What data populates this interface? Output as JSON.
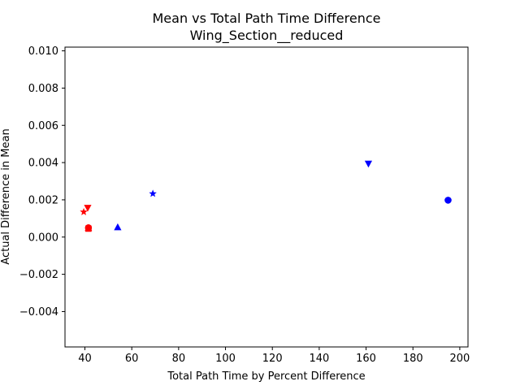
{
  "chart_data": {
    "type": "scatter",
    "title": "Mean vs Total Path Time Difference",
    "subtitle": "Wing_Section__reduced",
    "xlabel": "Total Path Time by Percent Difference",
    "ylabel": "Actual Difference in Mean",
    "xlim": [
      31.5,
      203.5
    ],
    "ylim": [
      -0.0059,
      0.0102
    ],
    "x_ticks": [
      40,
      60,
      80,
      100,
      120,
      140,
      160,
      180,
      200
    ],
    "x_tick_labels": [
      "40",
      "60",
      "80",
      "100",
      "120",
      "140",
      "160",
      "180",
      "200"
    ],
    "y_ticks": [
      -0.004,
      -0.002,
      0.0,
      0.002,
      0.004,
      0.006,
      0.008,
      0.01
    ],
    "y_tick_labels": [
      "−0.004",
      "−0.002",
      "0.000",
      "0.002",
      "0.004",
      "0.006",
      "0.008",
      "0.010"
    ],
    "grid": false,
    "legend": "none",
    "colors": {
      "blue": "#0000ff",
      "red": "#ff0000"
    },
    "points": [
      {
        "x": 195.0,
        "y": 0.00198,
        "marker": "circle",
        "color": "blue"
      },
      {
        "x": 161.0,
        "y": 0.00395,
        "marker": "triangle-down",
        "color": "blue"
      },
      {
        "x": 69.0,
        "y": 0.00233,
        "marker": "star",
        "color": "blue"
      },
      {
        "x": 54.0,
        "y": 0.00052,
        "marker": "triangle-up",
        "color": "blue"
      },
      {
        "x": 41.2,
        "y": 0.00158,
        "marker": "triangle-down",
        "color": "red"
      },
      {
        "x": 39.5,
        "y": 0.00135,
        "marker": "star",
        "color": "red"
      },
      {
        "x": 41.5,
        "y": 0.0005,
        "marker": "circle",
        "color": "red"
      },
      {
        "x": 41.5,
        "y": 0.00045,
        "marker": "square",
        "color": "red"
      },
      {
        "x": 41.5,
        "y": 0.00048,
        "marker": "triangle-up",
        "color": "red"
      }
    ]
  }
}
